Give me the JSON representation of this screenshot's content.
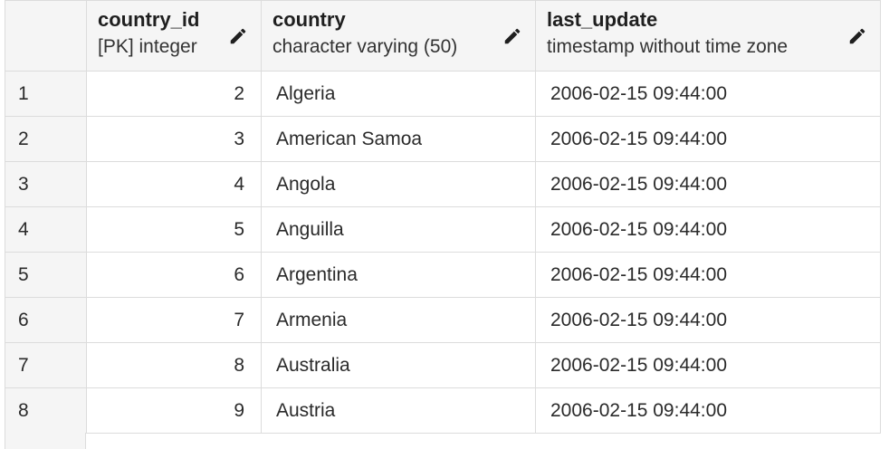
{
  "columns": [
    {
      "name": "country_id",
      "type": "[PK] integer",
      "edit_icon": "pencil-icon"
    },
    {
      "name": "country",
      "type": "character varying (50)",
      "edit_icon": "pencil-icon"
    },
    {
      "name": "last_update",
      "type": "timestamp without time zone",
      "edit_icon": "pencil-icon"
    }
  ],
  "rows": [
    {
      "rownum": "1",
      "country_id": "2",
      "country": "Algeria",
      "last_update": "2006-02-15 09:44:00"
    },
    {
      "rownum": "2",
      "country_id": "3",
      "country": "American Samoa",
      "last_update": "2006-02-15 09:44:00"
    },
    {
      "rownum": "3",
      "country_id": "4",
      "country": "Angola",
      "last_update": "2006-02-15 09:44:00"
    },
    {
      "rownum": "4",
      "country_id": "5",
      "country": "Anguilla",
      "last_update": "2006-02-15 09:44:00"
    },
    {
      "rownum": "5",
      "country_id": "6",
      "country": "Argentina",
      "last_update": "2006-02-15 09:44:00"
    },
    {
      "rownum": "6",
      "country_id": "7",
      "country": "Armenia",
      "last_update": "2006-02-15 09:44:00"
    },
    {
      "rownum": "7",
      "country_id": "8",
      "country": "Australia",
      "last_update": "2006-02-15 09:44:00"
    },
    {
      "rownum": "8",
      "country_id": "9",
      "country": "Austria",
      "last_update": "2006-02-15 09:44:00"
    }
  ],
  "colors": {
    "header_background": "#f5f5f5",
    "grid_border": "#dcdcdc",
    "text": "#222222"
  }
}
